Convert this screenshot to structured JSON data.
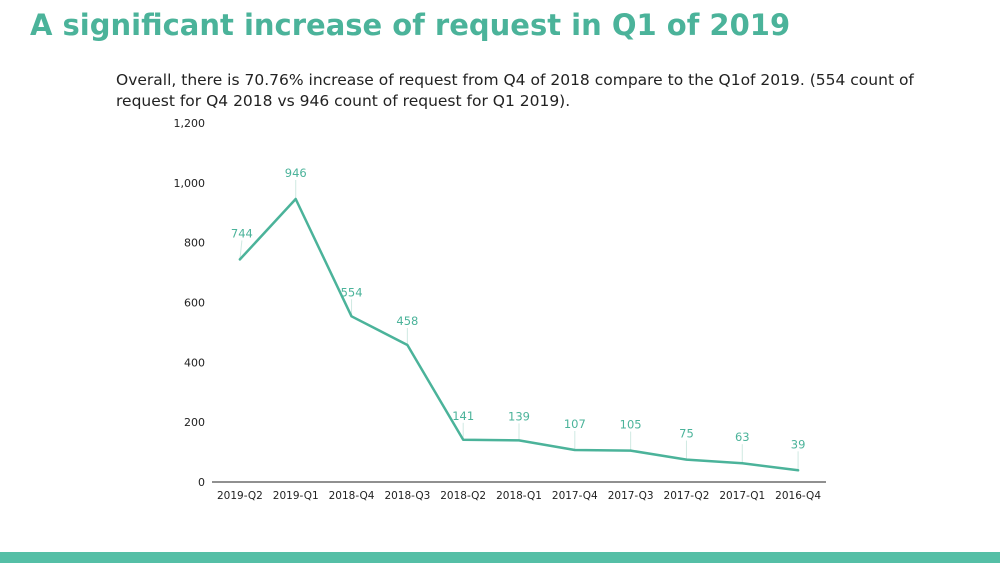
{
  "slide": {
    "title": "A significant increase of request in Q1 of 2019",
    "subtitle": "Overall, there is 70.76% increase of request from Q4 of 2018 compare to the Q1of 2019. (554 count of request for Q4 2018 vs  946 count of request for Q1 2019).",
    "accent_color": "#4bb39a",
    "footer_color": "#55bfa6"
  },
  "chart_data": {
    "type": "line",
    "title": "",
    "xlabel": "",
    "ylabel": "",
    "categories": [
      "2019-Q2",
      "2019-Q1",
      "2018-Q4",
      "2018-Q3",
      "2018-Q2",
      "2018-Q1",
      "2017-Q4",
      "2017-Q3",
      "2017-Q2",
      "2017-Q1",
      "2016-Q4"
    ],
    "series": [
      {
        "name": "Count of request",
        "values": [
          744,
          946,
          554,
          458,
          141,
          139,
          107,
          105,
          75,
          63,
          39
        ],
        "color": "#4bb39a"
      }
    ],
    "ylim": [
      0,
      1200
    ],
    "y_ticks": [
      0,
      200,
      400,
      600,
      800,
      1000,
      1200
    ],
    "y_tick_labels": [
      "0",
      "200",
      "400",
      "600",
      "800",
      "1,000",
      "1,200"
    ],
    "data_labels": [
      "744",
      "946",
      "554",
      "458",
      "141",
      "139",
      "107",
      "105",
      "75",
      "63",
      "39"
    ],
    "grid": false,
    "legend": "none"
  }
}
